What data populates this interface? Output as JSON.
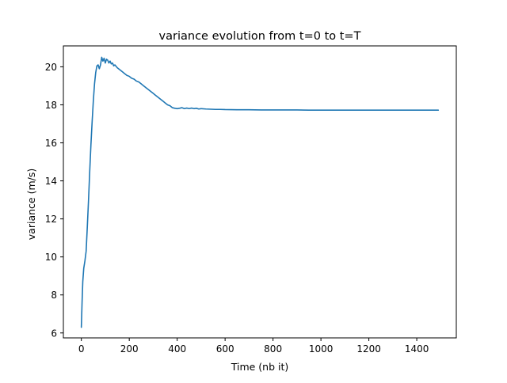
{
  "chart_data": {
    "type": "line",
    "title": "variance evolution from t=0 to t=T",
    "xlabel": "Time (nb it)",
    "ylabel": "variance (m/s)",
    "xlim": [
      -75,
      1565
    ],
    "ylim": [
      5.74,
      21.1
    ],
    "xticks": [
      0,
      200,
      400,
      600,
      800,
      1000,
      1200,
      1400
    ],
    "yticks": [
      6,
      8,
      10,
      12,
      14,
      16,
      18,
      20
    ],
    "grid": false,
    "legend": "none",
    "series": [
      {
        "color": "#1f77b4",
        "x": [
          0,
          3,
          6,
          10,
          15,
          20,
          25,
          30,
          35,
          40,
          45,
          50,
          55,
          60,
          65,
          70,
          75,
          80,
          85,
          90,
          95,
          100,
          105,
          110,
          115,
          120,
          125,
          130,
          135,
          140,
          150,
          160,
          170,
          180,
          190,
          200,
          210,
          220,
          230,
          240,
          250,
          260,
          270,
          280,
          290,
          300,
          310,
          320,
          330,
          340,
          350,
          360,
          370,
          380,
          390,
          400,
          410,
          420,
          430,
          440,
          450,
          460,
          470,
          480,
          490,
          500,
          520,
          540,
          560,
          580,
          600,
          650,
          700,
          750,
          800,
          850,
          900,
          950,
          1000,
          1050,
          1100,
          1150,
          1200,
          1250,
          1300,
          1350,
          1400,
          1450,
          1490
        ],
        "y": [
          6.3,
          7.6,
          8.7,
          9.4,
          9.8,
          10.3,
          11.6,
          13.0,
          14.5,
          15.9,
          17.1,
          18.2,
          19.1,
          19.7,
          20.05,
          20.1,
          19.9,
          20.1,
          20.5,
          20.3,
          20.45,
          20.2,
          20.4,
          20.35,
          20.2,
          20.3,
          20.15,
          20.2,
          20.05,
          20.1,
          19.95,
          19.85,
          19.75,
          19.65,
          19.55,
          19.5,
          19.4,
          19.35,
          19.25,
          19.2,
          19.1,
          19.0,
          18.9,
          18.8,
          18.7,
          18.6,
          18.5,
          18.4,
          18.3,
          18.2,
          18.1,
          18.0,
          17.95,
          17.85,
          17.82,
          17.8,
          17.82,
          17.85,
          17.8,
          17.83,
          17.8,
          17.83,
          17.8,
          17.82,
          17.78,
          17.8,
          17.78,
          17.77,
          17.76,
          17.76,
          17.75,
          17.74,
          17.74,
          17.73,
          17.73,
          17.73,
          17.73,
          17.72,
          17.72,
          17.72,
          17.72,
          17.72,
          17.72,
          17.72,
          17.72,
          17.72,
          17.72,
          17.72,
          17.72
        ]
      }
    ]
  }
}
